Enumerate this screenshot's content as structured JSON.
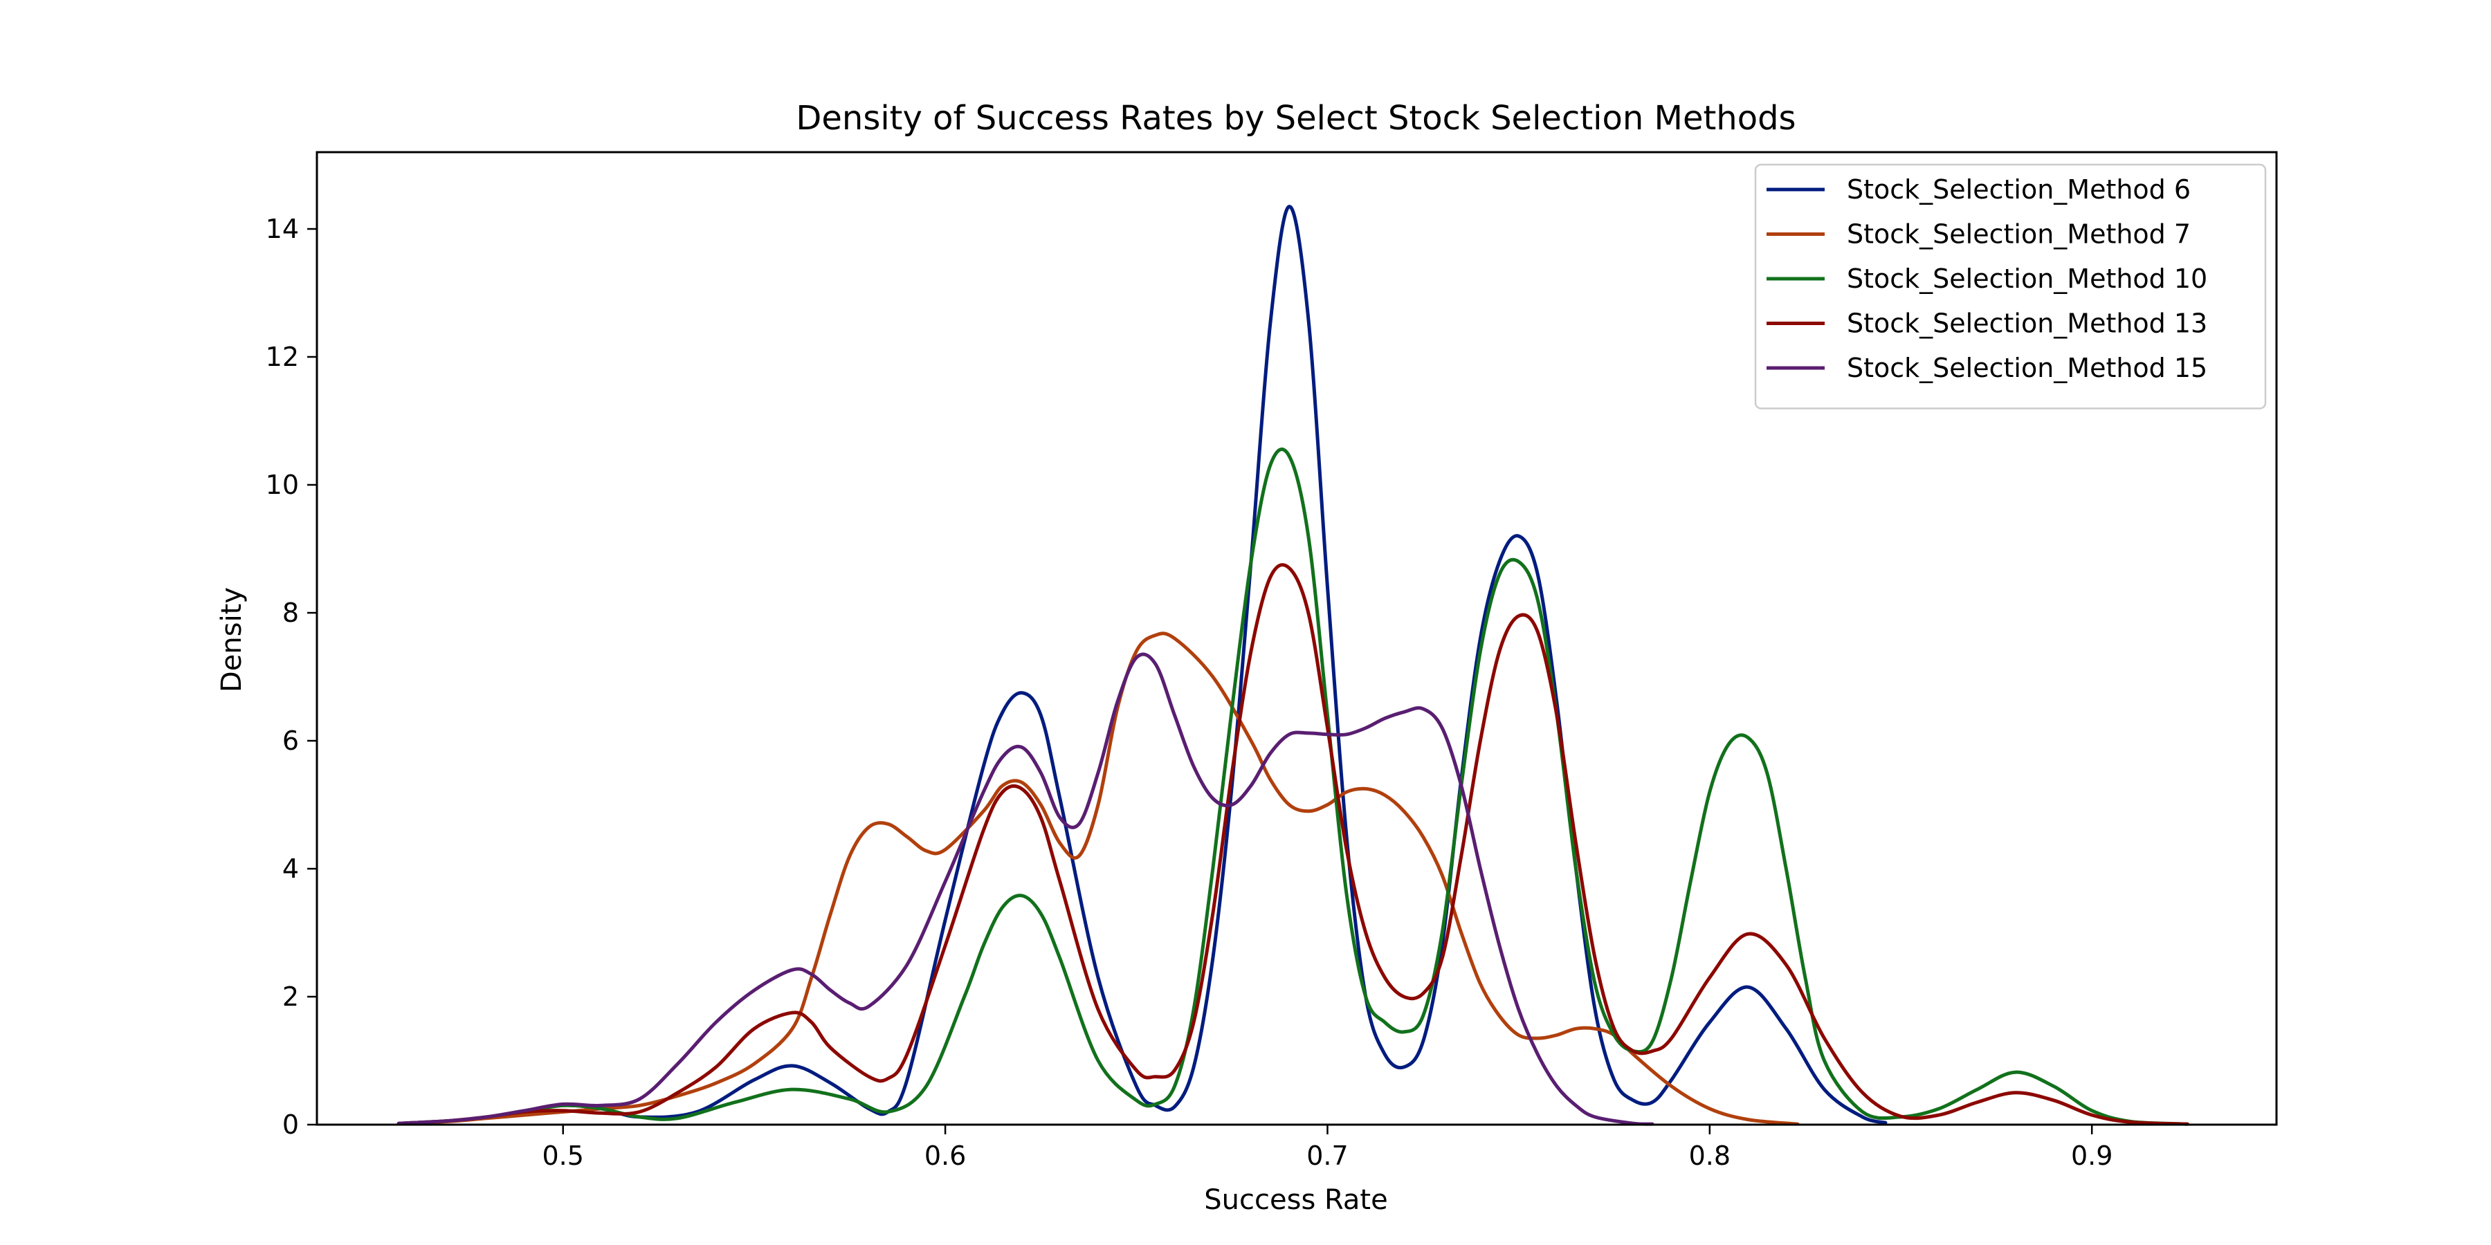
{
  "chart_data": {
    "type": "line",
    "title": "Density of Success Rates by Select Stock Selection Methods",
    "xlabel": "Success Rate",
    "ylabel": "Density",
    "xlim": [
      0.4356,
      0.9483
    ],
    "ylim": [
      0,
      15.2
    ],
    "xticks": [
      0.5,
      0.6,
      0.7,
      0.8,
      0.9
    ],
    "xtick_labels": [
      "0.5",
      "0.6",
      "0.7",
      "0.8",
      "0.9"
    ],
    "yticks": [
      0,
      2,
      4,
      6,
      8,
      10,
      12,
      14
    ],
    "ytick_labels": [
      "0",
      "2",
      "4",
      "6",
      "8",
      "10",
      "12",
      "14"
    ],
    "grid": false,
    "legend_position": "top-right",
    "series": [
      {
        "name": "Stock_Selection_Method 6",
        "color": "#001c7f",
        "x": [
          0.49,
          0.5,
          0.51,
          0.52,
          0.535,
          0.55,
          0.56,
          0.57,
          0.58,
          0.585,
          0.59,
          0.6,
          0.61,
          0.615,
          0.62,
          0.625,
          0.63,
          0.64,
          0.65,
          0.655,
          0.66,
          0.665,
          0.67,
          0.675,
          0.68,
          0.685,
          0.69,
          0.695,
          0.7,
          0.705,
          0.71,
          0.715,
          0.72,
          0.725,
          0.73,
          0.735,
          0.74,
          0.745,
          0.75,
          0.755,
          0.76,
          0.765,
          0.77,
          0.775,
          0.78,
          0.785,
          0.79,
          0.8,
          0.81,
          0.82,
          0.83,
          0.84,
          0.846
        ],
        "y": [
          0.2,
          0.3,
          0.25,
          0.12,
          0.2,
          0.7,
          0.92,
          0.65,
          0.25,
          0.2,
          0.7,
          3.2,
          5.6,
          6.45,
          6.75,
          6.4,
          5.1,
          2.3,
          0.6,
          0.3,
          0.28,
          0.9,
          2.6,
          5.3,
          8.8,
          12.5,
          14.35,
          12.6,
          8.4,
          4.5,
          2.0,
          1.1,
          0.9,
          1.3,
          2.8,
          5.4,
          7.6,
          8.8,
          9.2,
          8.6,
          6.6,
          4.0,
          1.8,
          0.7,
          0.38,
          0.35,
          0.7,
          1.6,
          2.15,
          1.5,
          0.55,
          0.12,
          0.03
        ]
      },
      {
        "name": "Stock_Selection_Method 7",
        "color": "#b1400d",
        "x": [
          0.457,
          0.47,
          0.48,
          0.49,
          0.5,
          0.51,
          0.52,
          0.53,
          0.54,
          0.55,
          0.56,
          0.565,
          0.57,
          0.575,
          0.58,
          0.585,
          0.59,
          0.595,
          0.6,
          0.61,
          0.615,
          0.62,
          0.625,
          0.63,
          0.635,
          0.64,
          0.645,
          0.65,
          0.655,
          0.66,
          0.67,
          0.68,
          0.685,
          0.69,
          0.695,
          0.7,
          0.705,
          0.71,
          0.715,
          0.72,
          0.725,
          0.73,
          0.735,
          0.74,
          0.745,
          0.75,
          0.755,
          0.76,
          0.765,
          0.77,
          0.775,
          0.78,
          0.79,
          0.8,
          0.81,
          0.823
        ],
        "y": [
          0.02,
          0.05,
          0.1,
          0.15,
          0.2,
          0.25,
          0.3,
          0.45,
          0.65,
          0.95,
          1.5,
          2.3,
          3.3,
          4.2,
          4.65,
          4.7,
          4.5,
          4.28,
          4.3,
          4.9,
          5.3,
          5.35,
          5.0,
          4.4,
          4.2,
          5.0,
          6.5,
          7.4,
          7.65,
          7.6,
          7.0,
          6.0,
          5.4,
          5.0,
          4.9,
          5.0,
          5.2,
          5.25,
          5.15,
          4.9,
          4.5,
          3.9,
          3.0,
          2.2,
          1.7,
          1.4,
          1.35,
          1.4,
          1.5,
          1.5,
          1.4,
          1.1,
          0.6,
          0.25,
          0.08,
          0.01
        ]
      },
      {
        "name": "Stock_Selection_Method 10",
        "color": "#12711c",
        "x": [
          0.49,
          0.5,
          0.51,
          0.52,
          0.53,
          0.545,
          0.56,
          0.575,
          0.585,
          0.595,
          0.605,
          0.61,
          0.615,
          0.62,
          0.625,
          0.63,
          0.64,
          0.65,
          0.655,
          0.66,
          0.665,
          0.67,
          0.675,
          0.68,
          0.685,
          0.69,
          0.695,
          0.7,
          0.705,
          0.71,
          0.715,
          0.72,
          0.725,
          0.73,
          0.735,
          0.74,
          0.745,
          0.75,
          0.755,
          0.76,
          0.765,
          0.77,
          0.775,
          0.78,
          0.785,
          0.79,
          0.795,
          0.8,
          0.805,
          0.81,
          0.815,
          0.82,
          0.825,
          0.83,
          0.84,
          0.85,
          0.86,
          0.87,
          0.88,
          0.89,
          0.9,
          0.91,
          0.925
        ],
        "y": [
          0.2,
          0.3,
          0.25,
          0.12,
          0.1,
          0.35,
          0.55,
          0.4,
          0.2,
          0.6,
          2.0,
          2.8,
          3.4,
          3.58,
          3.3,
          2.6,
          1.0,
          0.38,
          0.32,
          0.6,
          1.8,
          4.0,
          6.5,
          8.8,
          10.3,
          10.45,
          9.2,
          6.4,
          3.6,
          2.0,
          1.6,
          1.45,
          1.7,
          3.0,
          5.3,
          7.4,
          8.6,
          8.8,
          8.2,
          6.4,
          4.0,
          2.2,
          1.4,
          1.15,
          1.3,
          2.3,
          3.8,
          5.2,
          5.95,
          6.05,
          5.5,
          4.0,
          2.3,
          1.0,
          0.2,
          0.12,
          0.25,
          0.55,
          0.82,
          0.6,
          0.22,
          0.05,
          0.01
        ]
      },
      {
        "name": "Stock_Selection_Method 13",
        "color": "#8c0800",
        "x": [
          0.457,
          0.47,
          0.48,
          0.49,
          0.5,
          0.51,
          0.52,
          0.53,
          0.54,
          0.55,
          0.56,
          0.565,
          0.57,
          0.58,
          0.585,
          0.59,
          0.6,
          0.61,
          0.615,
          0.62,
          0.625,
          0.63,
          0.64,
          0.65,
          0.655,
          0.66,
          0.665,
          0.67,
          0.675,
          0.68,
          0.685,
          0.69,
          0.695,
          0.7,
          0.705,
          0.71,
          0.715,
          0.72,
          0.725,
          0.73,
          0.735,
          0.74,
          0.745,
          0.75,
          0.755,
          0.76,
          0.765,
          0.77,
          0.775,
          0.78,
          0.785,
          0.79,
          0.8,
          0.81,
          0.82,
          0.83,
          0.84,
          0.85,
          0.86,
          0.87,
          0.88,
          0.89,
          0.9,
          0.91,
          0.925
        ],
        "y": [
          0.02,
          0.06,
          0.12,
          0.2,
          0.22,
          0.18,
          0.2,
          0.5,
          0.9,
          1.5,
          1.75,
          1.6,
          1.2,
          0.75,
          0.72,
          1.1,
          2.8,
          4.6,
          5.2,
          5.25,
          4.8,
          3.8,
          1.8,
          0.85,
          0.75,
          0.85,
          1.6,
          3.3,
          5.5,
          7.4,
          8.55,
          8.7,
          8.0,
          6.2,
          4.3,
          3.0,
          2.3,
          2.0,
          2.05,
          2.6,
          4.2,
          6.0,
          7.4,
          7.95,
          7.7,
          6.4,
          4.4,
          2.6,
          1.5,
          1.15,
          1.15,
          1.35,
          2.3,
          2.98,
          2.5,
          1.35,
          0.5,
          0.13,
          0.15,
          0.35,
          0.5,
          0.38,
          0.15,
          0.04,
          0.01
        ]
      },
      {
        "name": "Stock_Selection_Method 15",
        "color": "#591e71",
        "x": [
          0.457,
          0.47,
          0.48,
          0.49,
          0.5,
          0.51,
          0.52,
          0.53,
          0.54,
          0.55,
          0.56,
          0.565,
          0.57,
          0.575,
          0.58,
          0.59,
          0.6,
          0.61,
          0.615,
          0.62,
          0.625,
          0.63,
          0.635,
          0.64,
          0.645,
          0.65,
          0.655,
          0.66,
          0.665,
          0.67,
          0.675,
          0.68,
          0.685,
          0.69,
          0.695,
          0.7,
          0.705,
          0.71,
          0.715,
          0.72,
          0.725,
          0.73,
          0.735,
          0.74,
          0.745,
          0.75,
          0.755,
          0.76,
          0.765,
          0.77,
          0.78,
          0.785
        ],
        "y": [
          0.02,
          0.06,
          0.12,
          0.22,
          0.32,
          0.3,
          0.4,
          0.95,
          1.6,
          2.1,
          2.42,
          2.35,
          2.1,
          1.9,
          1.85,
          2.5,
          3.8,
          5.2,
          5.75,
          5.9,
          5.5,
          4.8,
          4.7,
          5.5,
          6.6,
          7.3,
          7.2,
          6.4,
          5.6,
          5.1,
          5.0,
          5.3,
          5.8,
          6.1,
          6.12,
          6.1,
          6.1,
          6.2,
          6.35,
          6.45,
          6.5,
          6.2,
          5.3,
          4.0,
          2.8,
          1.8,
          1.1,
          0.6,
          0.3,
          0.12,
          0.02,
          0.01
        ]
      }
    ]
  }
}
